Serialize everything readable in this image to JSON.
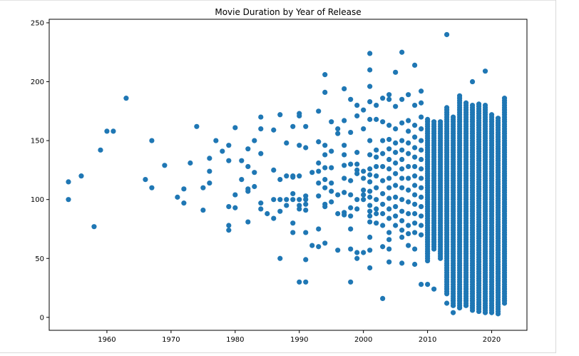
{
  "chart_data": {
    "type": "scatter",
    "title": "Movie Duration by Year of Release",
    "xlabel": "",
    "ylabel": "",
    "xlim": [
      1951,
      2025.5
    ],
    "ylim": [
      -11,
      253
    ],
    "xticks": [
      1960,
      1970,
      1980,
      1990,
      2000,
      2010,
      2020
    ],
    "yticks": [
      0,
      50,
      100,
      150,
      200,
      250
    ],
    "color": "#1f77b4",
    "grid": false,
    "legend": "none",
    "series": [
      {
        "points": [
          [
            1954,
            115
          ],
          [
            1954,
            100
          ],
          [
            1956,
            120
          ],
          [
            1958,
            77
          ],
          [
            1959,
            142
          ],
          [
            1960,
            158
          ],
          [
            1961,
            158
          ],
          [
            1963,
            186
          ],
          [
            1966,
            117
          ],
          [
            1967,
            150
          ],
          [
            1967,
            110
          ],
          [
            1969,
            129
          ],
          [
            1971,
            102
          ],
          [
            1972,
            109
          ],
          [
            1972,
            97
          ],
          [
            1973,
            131
          ],
          [
            1974,
            162
          ],
          [
            1975,
            91
          ],
          [
            1975,
            110
          ],
          [
            1976,
            135
          ],
          [
            1976,
            124
          ],
          [
            1976,
            114
          ],
          [
            1977,
            150
          ],
          [
            1978,
            141
          ],
          [
            1979,
            146
          ],
          [
            1979,
            133
          ],
          [
            1979,
            94
          ],
          [
            1979,
            78
          ],
          [
            1979,
            74
          ],
          [
            1980,
            161
          ],
          [
            1980,
            104
          ],
          [
            1980,
            93
          ],
          [
            1981,
            133
          ],
          [
            1981,
            117
          ],
          [
            1982,
            143
          ],
          [
            1982,
            128
          ],
          [
            1982,
            109
          ],
          [
            1982,
            107
          ],
          [
            1982,
            81
          ],
          [
            1983,
            150
          ],
          [
            1983,
            123
          ],
          [
            1983,
            111
          ],
          [
            1984,
            170
          ],
          [
            1984,
            160
          ],
          [
            1984,
            139
          ],
          [
            1984,
            97
          ],
          [
            1984,
            92
          ],
          [
            1985,
            88
          ],
          [
            1986,
            159
          ],
          [
            1986,
            125
          ],
          [
            1986,
            100
          ],
          [
            1986,
            84
          ],
          [
            1987,
            172
          ],
          [
            1987,
            117
          ],
          [
            1987,
            100
          ],
          [
            1987,
            90
          ],
          [
            1987,
            50
          ],
          [
            1988,
            148
          ],
          [
            1988,
            120
          ],
          [
            1988,
            100
          ],
          [
            1988,
            95
          ],
          [
            1989,
            162
          ],
          [
            1989,
            120
          ],
          [
            1989,
            119
          ],
          [
            1989,
            105
          ],
          [
            1989,
            100
          ],
          [
            1989,
            80
          ],
          [
            1989,
            72
          ],
          [
            1990,
            173
          ],
          [
            1990,
            171
          ],
          [
            1990,
            146
          ],
          [
            1990,
            120
          ],
          [
            1990,
            100
          ],
          [
            1990,
            95
          ],
          [
            1990,
            92
          ],
          [
            1990,
            30
          ],
          [
            1991,
            162
          ],
          [
            1991,
            144
          ],
          [
            1991,
            103
          ],
          [
            1991,
            100
          ],
          [
            1991,
            96
          ],
          [
            1991,
            91
          ],
          [
            1991,
            72
          ],
          [
            1991,
            49
          ],
          [
            1991,
            30
          ],
          [
            1992,
            123
          ],
          [
            1992,
            61
          ],
          [
            1993,
            175
          ],
          [
            1993,
            149
          ],
          [
            1993,
            131
          ],
          [
            1993,
            124
          ],
          [
            1993,
            114
          ],
          [
            1993,
            103
          ],
          [
            1993,
            75
          ],
          [
            1993,
            60
          ],
          [
            1994,
            206
          ],
          [
            1994,
            191
          ],
          [
            1994,
            146
          ],
          [
            1994,
            138
          ],
          [
            1994,
            127
          ],
          [
            1994,
            117
          ],
          [
            1994,
            110
          ],
          [
            1994,
            96
          ],
          [
            1994,
            94
          ],
          [
            1994,
            63
          ],
          [
            1995,
            166
          ],
          [
            1995,
            141
          ],
          [
            1995,
            127
          ],
          [
            1995,
            114
          ],
          [
            1995,
            107
          ],
          [
            1995,
            98
          ],
          [
            1996,
            160
          ],
          [
            1996,
            156
          ],
          [
            1996,
            104
          ],
          [
            1996,
            88
          ],
          [
            1996,
            57
          ],
          [
            1997,
            194
          ],
          [
            1997,
            167
          ],
          [
            1997,
            146
          ],
          [
            1997,
            138
          ],
          [
            1997,
            129
          ],
          [
            1997,
            118
          ],
          [
            1997,
            106
          ],
          [
            1997,
            89
          ],
          [
            1997,
            87
          ],
          [
            1998,
            185
          ],
          [
            1998,
            157
          ],
          [
            1998,
            130
          ],
          [
            1998,
            116
          ],
          [
            1998,
            104
          ],
          [
            1998,
            93
          ],
          [
            1998,
            86
          ],
          [
            1998,
            75
          ],
          [
            1998,
            58
          ],
          [
            1998,
            30
          ],
          [
            1999,
            180
          ],
          [
            1999,
            171
          ],
          [
            1999,
            140
          ],
          [
            1999,
            130
          ],
          [
            1999,
            125
          ],
          [
            1999,
            122
          ],
          [
            1999,
            100
          ],
          [
            1999,
            92
          ],
          [
            1999,
            55
          ],
          [
            1999,
            50
          ],
          [
            2000,
            176
          ],
          [
            2000,
            160
          ],
          [
            2000,
            124
          ],
          [
            2000,
            118
          ],
          [
            2000,
            108
          ],
          [
            2000,
            104
          ],
          [
            2000,
            100
          ],
          [
            2000,
            55
          ],
          [
            2001,
            224
          ],
          [
            2001,
            210
          ],
          [
            2001,
            196
          ],
          [
            2001,
            183
          ],
          [
            2001,
            168
          ],
          [
            2001,
            150
          ],
          [
            2001,
            138
          ],
          [
            2001,
            126
          ],
          [
            2001,
            121
          ],
          [
            2001,
            115
          ],
          [
            2001,
            107
          ],
          [
            2001,
            102
          ],
          [
            2001,
            95
          ],
          [
            2001,
            90
          ],
          [
            2001,
            86
          ],
          [
            2001,
            81
          ],
          [
            2001,
            68
          ],
          [
            2001,
            57
          ],
          [
            2001,
            42
          ],
          [
            2002,
            180
          ],
          [
            2002,
            168
          ],
          [
            2002,
            142
          ],
          [
            2002,
            136
          ],
          [
            2002,
            128
          ],
          [
            2002,
            120
          ],
          [
            2002,
            110
          ],
          [
            2002,
            100
          ],
          [
            2002,
            92
          ],
          [
            2002,
            88
          ],
          [
            2002,
            80
          ],
          [
            2003,
            186
          ],
          [
            2003,
            166
          ],
          [
            2003,
            150
          ],
          [
            2003,
            139
          ],
          [
            2003,
            128
          ],
          [
            2003,
            116
          ],
          [
            2003,
            105
          ],
          [
            2003,
            96
          ],
          [
            2003,
            88
          ],
          [
            2003,
            78
          ],
          [
            2003,
            60
          ],
          [
            2003,
            16
          ],
          [
            2004,
            189
          ],
          [
            2004,
            185
          ],
          [
            2004,
            163
          ],
          [
            2004,
            151
          ],
          [
            2004,
            143
          ],
          [
            2004,
            134
          ],
          [
            2004,
            126
          ],
          [
            2004,
            118
          ],
          [
            2004,
            110
          ],
          [
            2004,
            101
          ],
          [
            2004,
            92
          ],
          [
            2004,
            84
          ],
          [
            2004,
            72
          ],
          [
            2004,
            66
          ],
          [
            2004,
            58
          ],
          [
            2004,
            47
          ],
          [
            2005,
            208
          ],
          [
            2005,
            179
          ],
          [
            2005,
            160
          ],
          [
            2005,
            148
          ],
          [
            2005,
            140
          ],
          [
            2005,
            131
          ],
          [
            2005,
            122
          ],
          [
            2005,
            112
          ],
          [
            2005,
            102
          ],
          [
            2005,
            94
          ],
          [
            2005,
            86
          ],
          [
            2005,
            78
          ],
          [
            2006,
            225
          ],
          [
            2006,
            185
          ],
          [
            2006,
            165
          ],
          [
            2006,
            150
          ],
          [
            2006,
            142
          ],
          [
            2006,
            134
          ],
          [
            2006,
            126
          ],
          [
            2006,
            118
          ],
          [
            2006,
            110
          ],
          [
            2006,
            100
          ],
          [
            2006,
            90
          ],
          [
            2006,
            82
          ],
          [
            2006,
            74
          ],
          [
            2006,
            68
          ],
          [
            2006,
            46
          ],
          [
            2007,
            189
          ],
          [
            2007,
            167
          ],
          [
            2007,
            158
          ],
          [
            2007,
            148
          ],
          [
            2007,
            139
          ],
          [
            2007,
            128
          ],
          [
            2007,
            118
          ],
          [
            2007,
            108
          ],
          [
            2007,
            98
          ],
          [
            2007,
            88
          ],
          [
            2007,
            78
          ],
          [
            2007,
            71
          ],
          [
            2007,
            61
          ],
          [
            2008,
            214
          ],
          [
            2008,
            180
          ],
          [
            2008,
            163
          ],
          [
            2008,
            153
          ],
          [
            2008,
            144
          ],
          [
            2008,
            136
          ],
          [
            2008,
            128
          ],
          [
            2008,
            120
          ],
          [
            2008,
            112
          ],
          [
            2008,
            104
          ],
          [
            2008,
            96
          ],
          [
            2008,
            88
          ],
          [
            2008,
            80
          ],
          [
            2008,
            72
          ],
          [
            2008,
            58
          ],
          [
            2008,
            45
          ],
          [
            2009,
            192
          ],
          [
            2009,
            182
          ],
          [
            2009,
            170
          ],
          [
            2009,
            160
          ],
          [
            2009,
            150
          ],
          [
            2009,
            142
          ],
          [
            2009,
            134
          ],
          [
            2009,
            126
          ],
          [
            2009,
            118
          ],
          [
            2009,
            110
          ],
          [
            2009,
            102
          ],
          [
            2009,
            94
          ],
          [
            2009,
            86
          ],
          [
            2009,
            78
          ],
          [
            2009,
            70
          ],
          [
            2009,
            28
          ]
        ],
        "dense_columns": [
          {
            "x": 2010,
            "from": 48,
            "to": 168,
            "extra": [
              28
            ]
          },
          {
            "x": 2011,
            "from": 58,
            "to": 166,
            "extra": [
              24
            ]
          },
          {
            "x": 2012,
            "from": 50,
            "to": 166,
            "extra": []
          },
          {
            "x": 2013,
            "from": 20,
            "to": 178,
            "extra": [
              240,
              12
            ]
          },
          {
            "x": 2014,
            "from": 10,
            "to": 170,
            "extra": [
              4
            ]
          },
          {
            "x": 2015,
            "from": 8,
            "to": 188,
            "extra": []
          },
          {
            "x": 2016,
            "from": 10,
            "to": 182,
            "extra": []
          },
          {
            "x": 2017,
            "from": 6,
            "to": 180,
            "extra": [
              200
            ]
          },
          {
            "x": 2018,
            "from": 5,
            "to": 182,
            "extra": []
          },
          {
            "x": 2019,
            "from": 4,
            "to": 180,
            "extra": [
              209
            ]
          },
          {
            "x": 2020,
            "from": 4,
            "to": 172,
            "extra": []
          },
          {
            "x": 2021,
            "from": 3,
            "to": 170,
            "extra": []
          },
          {
            "x": 2022,
            "from": 12,
            "to": 187,
            "extra": []
          }
        ]
      }
    ]
  }
}
